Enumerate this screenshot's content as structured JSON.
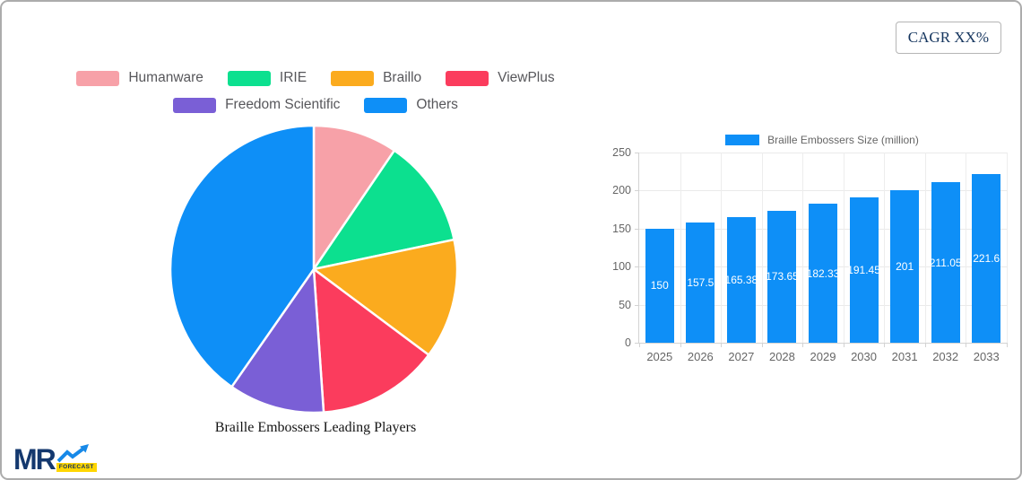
{
  "header": {
    "cagr_label": "CAGR XX%"
  },
  "logo": {
    "text": "MR",
    "badge": "FORECAST",
    "navy": "#14386E",
    "arrow_blue": "#1789E8",
    "badge_yellow": "#FFD600"
  },
  "chart_data": [
    {
      "type": "pie",
      "title": "Braille Embossers Leading Players",
      "legend_position": "top",
      "legend_rows": [
        4,
        2
      ],
      "start_angle_deg": 0,
      "direction": "clockwise",
      "slice_border_color": "#FFFFFF",
      "slices": [
        {
          "label": "Humanware",
          "value": 9.5,
          "color": "#F7A1A8"
        },
        {
          "label": "IRIE",
          "value": 12.2,
          "color": "#0CE08F"
        },
        {
          "label": "Braillo",
          "value": 13.5,
          "color": "#FBAB1E"
        },
        {
          "label": "ViewPlus",
          "value": 13.7,
          "color": "#FB3C5D"
        },
        {
          "label": "Freedom Scientific",
          "value": 10.8,
          "color": "#7A5FD6"
        },
        {
          "label": "Others",
          "value": 40.3,
          "color": "#0E8FF7"
        }
      ],
      "values_note": "slice percentages estimated from arc angles"
    },
    {
      "type": "bar",
      "legend_label": "Braille Embossers Size (million)",
      "legend_position": "top",
      "categories": [
        "2025",
        "2026",
        "2027",
        "2028",
        "2029",
        "2030",
        "2031",
        "2032",
        "2033"
      ],
      "values": [
        150,
        157.5,
        165.38,
        173.65,
        182.33,
        191.45,
        201,
        211.05,
        221.6
      ],
      "value_labels": [
        "150",
        "157.5",
        "165.38",
        "173.65",
        "182.33",
        "191.45",
        "201",
        "211.05",
        "221.6"
      ],
      "xlabel": "",
      "ylabel": "",
      "ylim": [
        0,
        250
      ],
      "yticks": [
        0,
        50,
        100,
        150,
        200,
        250
      ],
      "bar_color": "#0E8FF7",
      "grid": true
    }
  ]
}
